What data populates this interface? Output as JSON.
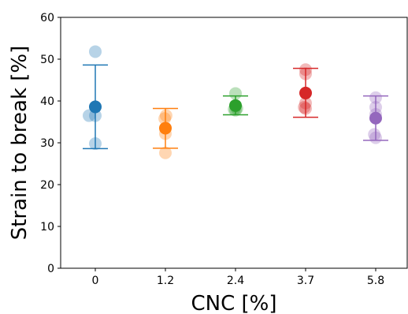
{
  "chart_data": {
    "type": "scatter",
    "xlabel": "CNC [%]",
    "ylabel": "Strain to break [%]",
    "ylim": [
      0,
      60
    ],
    "yticks": [
      0,
      10,
      20,
      30,
      40,
      50,
      60
    ],
    "categories": [
      "0",
      "1.2",
      "2.4",
      "3.7",
      "5.8"
    ],
    "grid": false,
    "series": [
      {
        "category": "0",
        "color": "#1f77b4",
        "points": [
          36.5,
          51.8,
          36.5,
          29.8
        ],
        "point_offsets": [
          -0.9,
          0.0,
          0.0,
          0.0
        ],
        "mean": 38.6,
        "err_low": 28.6,
        "err_high": 48.6
      },
      {
        "category": "1.2",
        "color": "#ff7f0e",
        "points": [
          36.5,
          35.8,
          32.2,
          27.6
        ],
        "point_offsets": [
          0.1,
          -0.1,
          0.0,
          0.0
        ],
        "mean": 33.5,
        "err_low": 28.7,
        "err_high": 38.2
      },
      {
        "category": "2.4",
        "color": "#2ca02c",
        "points": [
          41.8,
          38.0,
          38.2,
          37.8,
          38.9
        ],
        "point_offsets": [
          0.0,
          -0.2,
          0.2,
          0.0,
          0.0
        ],
        "mean": 38.9,
        "err_low": 36.7,
        "err_high": 41.2
      },
      {
        "category": "3.7",
        "color": "#d62728",
        "points": [
          47.5,
          46.5,
          39.5,
          38.5,
          38.2
        ],
        "point_offsets": [
          0.0,
          0.0,
          0.0,
          -0.2,
          0.0
        ],
        "mean": 41.9,
        "err_low": 36.1,
        "err_high": 47.8
      },
      {
        "category": "5.8",
        "color": "#9467bd",
        "points": [
          40.8,
          38.5,
          36.8,
          32.0,
          31.2
        ],
        "point_offsets": [
          0.0,
          0.0,
          0.0,
          -0.2,
          0.0
        ],
        "mean": 35.9,
        "err_low": 30.6,
        "err_high": 41.2
      }
    ]
  }
}
